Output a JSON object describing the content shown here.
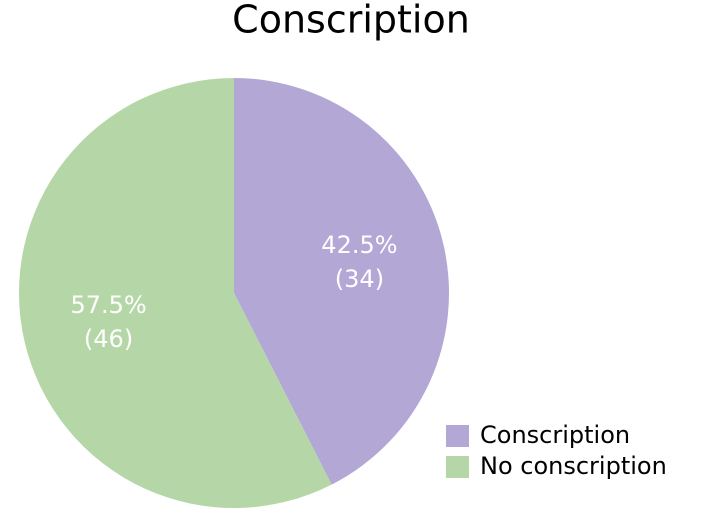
{
  "chart_data": {
    "type": "pie",
    "title": "Conscription",
    "categories": [
      "Conscription",
      "No conscription"
    ],
    "values": [
      34,
      46
    ],
    "value_labels": [
      [
        "42.5%",
        "(34)"
      ],
      [
        "57.5%",
        "(46)"
      ]
    ],
    "colors": [
      "#b3a7d6",
      "#b5d7a8"
    ],
    "legend": "lower right"
  }
}
